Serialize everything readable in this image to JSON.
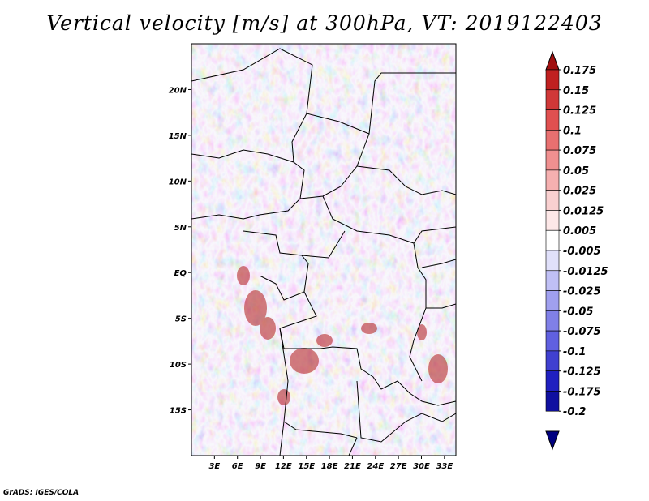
{
  "title": "Vertical velocity [m/s] at 300hPa, VT: 2019122403",
  "footer": "GrADS: IGES/COLA",
  "map": {
    "lon_range": [
      0,
      34.5
    ],
    "lat_range": [
      -20,
      25
    ],
    "lat_ticks": [
      {
        "value": 20,
        "label": "20N"
      },
      {
        "value": 15,
        "label": "15N"
      },
      {
        "value": 10,
        "label": "10N"
      },
      {
        "value": 5,
        "label": "5N"
      },
      {
        "value": 0,
        "label": "EQ"
      },
      {
        "value": -5,
        "label": "5S"
      },
      {
        "value": -10,
        "label": "10S"
      },
      {
        "value": -15,
        "label": "15S"
      }
    ],
    "lon_ticks": [
      {
        "value": 3,
        "label": "3E"
      },
      {
        "value": 6,
        "label": "6E"
      },
      {
        "value": 9,
        "label": "9E"
      },
      {
        "value": 12,
        "label": "12E"
      },
      {
        "value": 15,
        "label": "15E"
      },
      {
        "value": 18,
        "label": "18E"
      },
      {
        "value": 21,
        "label": "21E"
      },
      {
        "value": 24,
        "label": "24E"
      },
      {
        "value": 27,
        "label": "27E"
      },
      {
        "value": 30,
        "label": "30E"
      },
      {
        "value": 33,
        "label": "33E"
      }
    ]
  },
  "colorbar": {
    "levels": [
      "0.175",
      "0.15",
      "0.125",
      "0.1",
      "0.075",
      "0.05",
      "0.025",
      "0.0125",
      "0.005",
      "-0.005",
      "-0.0125",
      "-0.025",
      "-0.05",
      "-0.075",
      "-0.1",
      "-0.125",
      "-0.175",
      "-0.2"
    ],
    "colors": [
      "#a01010",
      "#c02020",
      "#d03838",
      "#e05050",
      "#e87070",
      "#f09090",
      "#f5b0b0",
      "#f9d0d0",
      "#fde8e8",
      "#ffffff",
      "#e0e0fa",
      "#c0c0f5",
      "#a0a0ef",
      "#8080e8",
      "#6060e0",
      "#4040d0",
      "#2020c0",
      "#1010a0",
      "#000080"
    ],
    "top_color": "#a01010",
    "bottom_color": "#000080"
  }
}
